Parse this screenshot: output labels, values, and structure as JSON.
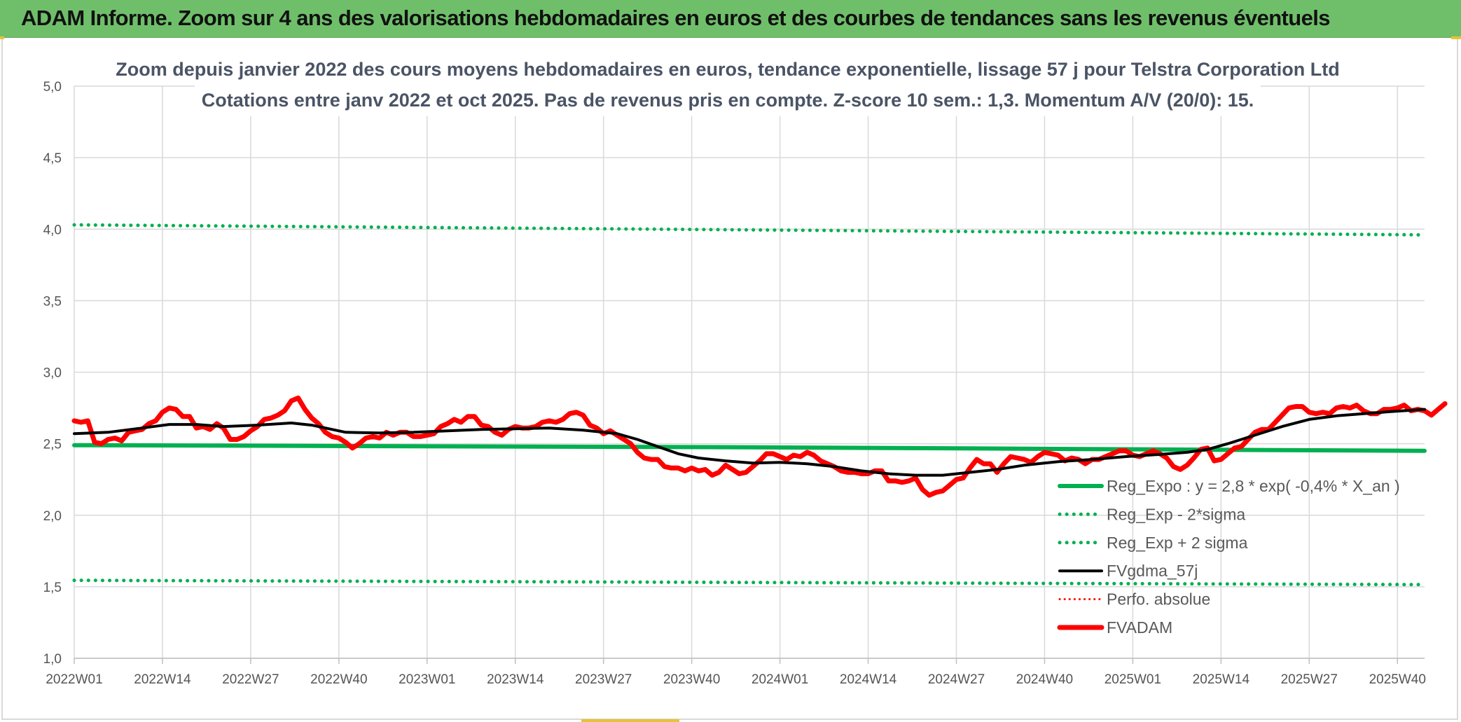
{
  "banner": {
    "title": "ADAM Informe. Zoom sur 4 ans des valorisations hebdomadaires en euros et des courbes de tendances sans les revenus éventuels"
  },
  "colors": {
    "banner_bg": "#6fbf6a",
    "reg_expo": "#00b050",
    "band": "#00b050",
    "fvgdma": "#000000",
    "perfo": "#ff0000",
    "fvadam": "#ff0000",
    "grid": "#d9d9d9"
  },
  "chart_data": {
    "type": "line",
    "title_line1": "Zoom depuis janvier 2022 des cours moyens hebdomadaires en euros, tendance exponentielle, lissage 57 j pour Telstra Corporation Ltd",
    "title_line2": "Cotations entre janv 2022 et oct 2025. Pas de revenus pris en compte. Z-score 10 sem.: 1,3. Momentum A/V (20/0): 15.",
    "xlabel": "",
    "ylabel": "",
    "ylim": [
      1.0,
      5.0
    ],
    "yticks": [
      "1,0",
      "1,5",
      "2,0",
      "2,5",
      "3,0",
      "3,5",
      "4,0",
      "4,5",
      "5,0"
    ],
    "xticks": [
      "2022W01",
      "2022W14",
      "2022W27",
      "2022W40",
      "2023W01",
      "2023W14",
      "2023W27",
      "2023W40",
      "2024W01",
      "2024W14",
      "2024W27",
      "2024W40",
      "2025W01",
      "2025W14",
      "2025W27",
      "2025W40"
    ],
    "x_range": [
      0,
      199
    ],
    "xtick_positions": [
      0,
      13,
      26,
      39,
      52,
      65,
      78,
      91,
      104,
      117,
      130,
      143,
      156,
      169,
      182,
      195
    ],
    "legend_position": "bottom-right",
    "series": [
      {
        "name": "Reg_Expo : y = 2,8 * exp( -0,4% *  X_an )",
        "style": "solid-thick",
        "keypoints": [
          [
            0,
            2.49
          ],
          [
            100,
            2.475
          ],
          [
            199,
            2.45
          ]
        ]
      },
      {
        "name": "Reg_Exp - 2*sigma",
        "style": "dotted",
        "keypoints": [
          [
            0,
            1.545
          ],
          [
            199,
            1.515
          ]
        ]
      },
      {
        "name": "Reg_Exp + 2 sigma",
        "style": "dotted",
        "keypoints": [
          [
            0,
            4.03
          ],
          [
            199,
            3.96
          ]
        ]
      },
      {
        "name": "FVgdma_57j",
        "style": "solid",
        "keypoints": [
          [
            0,
            2.57
          ],
          [
            5,
            2.58
          ],
          [
            10,
            2.61
          ],
          [
            14,
            2.635
          ],
          [
            18,
            2.635
          ],
          [
            22,
            2.62
          ],
          [
            27,
            2.63
          ],
          [
            32,
            2.645
          ],
          [
            35,
            2.63
          ],
          [
            40,
            2.58
          ],
          [
            45,
            2.575
          ],
          [
            50,
            2.58
          ],
          [
            55,
            2.59
          ],
          [
            60,
            2.6
          ],
          [
            65,
            2.605
          ],
          [
            70,
            2.61
          ],
          [
            75,
            2.595
          ],
          [
            80,
            2.57
          ],
          [
            83,
            2.53
          ],
          [
            86,
            2.48
          ],
          [
            89,
            2.43
          ],
          [
            92,
            2.4
          ],
          [
            96,
            2.38
          ],
          [
            100,
            2.365
          ],
          [
            104,
            2.37
          ],
          [
            108,
            2.36
          ],
          [
            112,
            2.34
          ],
          [
            116,
            2.31
          ],
          [
            120,
            2.29
          ],
          [
            124,
            2.28
          ],
          [
            128,
            2.28
          ],
          [
            132,
            2.3
          ],
          [
            136,
            2.32
          ],
          [
            140,
            2.35
          ],
          [
            145,
            2.375
          ],
          [
            150,
            2.39
          ],
          [
            155,
            2.41
          ],
          [
            160,
            2.425
          ],
          [
            164,
            2.44
          ],
          [
            167,
            2.46
          ],
          [
            170,
            2.5
          ],
          [
            174,
            2.56
          ],
          [
            178,
            2.62
          ],
          [
            182,
            2.67
          ],
          [
            186,
            2.695
          ],
          [
            190,
            2.71
          ],
          [
            194,
            2.725
          ],
          [
            199,
            2.74
          ]
        ]
      },
      {
        "name": "Perfo. absolue",
        "style": "dotted",
        "keypoints": []
      },
      {
        "name": "FVADAM",
        "style": "solid-thick",
        "keypoints": [
          [
            0,
            2.66
          ],
          [
            1,
            2.65
          ],
          [
            2,
            2.66
          ],
          [
            3,
            2.51
          ],
          [
            4,
            2.5
          ],
          [
            5,
            2.53
          ],
          [
            6,
            2.54
          ],
          [
            7,
            2.52
          ],
          [
            8,
            2.58
          ],
          [
            9,
            2.59
          ],
          [
            10,
            2.6
          ],
          [
            11,
            2.64
          ],
          [
            12,
            2.66
          ],
          [
            13,
            2.72
          ],
          [
            14,
            2.75
          ],
          [
            15,
            2.74
          ],
          [
            16,
            2.69
          ],
          [
            17,
            2.69
          ],
          [
            18,
            2.61
          ],
          [
            19,
            2.62
          ],
          [
            20,
            2.6
          ],
          [
            21,
            2.64
          ],
          [
            22,
            2.61
          ],
          [
            23,
            2.53
          ],
          [
            24,
            2.53
          ],
          [
            25,
            2.55
          ],
          [
            26,
            2.59
          ],
          [
            27,
            2.62
          ],
          [
            28,
            2.67
          ],
          [
            29,
            2.68
          ],
          [
            30,
            2.7
          ],
          [
            31,
            2.73
          ],
          [
            32,
            2.8
          ],
          [
            33,
            2.82
          ],
          [
            34,
            2.74
          ],
          [
            35,
            2.68
          ],
          [
            36,
            2.64
          ],
          [
            37,
            2.58
          ],
          [
            38,
            2.55
          ],
          [
            39,
            2.54
          ],
          [
            40,
            2.51
          ],
          [
            41,
            2.47
          ],
          [
            42,
            2.5
          ],
          [
            43,
            2.54
          ],
          [
            44,
            2.55
          ],
          [
            45,
            2.54
          ],
          [
            46,
            2.58
          ],
          [
            47,
            2.56
          ],
          [
            48,
            2.58
          ],
          [
            49,
            2.58
          ],
          [
            50,
            2.55
          ],
          [
            51,
            2.55
          ],
          [
            52,
            2.56
          ],
          [
            53,
            2.57
          ],
          [
            54,
            2.62
          ],
          [
            55,
            2.64
          ],
          [
            56,
            2.67
          ],
          [
            57,
            2.65
          ],
          [
            58,
            2.69
          ],
          [
            59,
            2.69
          ],
          [
            60,
            2.63
          ],
          [
            61,
            2.62
          ],
          [
            62,
            2.58
          ],
          [
            63,
            2.56
          ],
          [
            64,
            2.6
          ],
          [
            65,
            2.62
          ],
          [
            66,
            2.61
          ],
          [
            67,
            2.61
          ],
          [
            68,
            2.62
          ],
          [
            69,
            2.65
          ],
          [
            70,
            2.66
          ],
          [
            71,
            2.65
          ],
          [
            72,
            2.67
          ],
          [
            73,
            2.71
          ],
          [
            74,
            2.72
          ],
          [
            75,
            2.7
          ],
          [
            76,
            2.63
          ],
          [
            77,
            2.61
          ],
          [
            78,
            2.57
          ],
          [
            79,
            2.59
          ],
          [
            80,
            2.56
          ],
          [
            81,
            2.53
          ],
          [
            82,
            2.5
          ],
          [
            83,
            2.44
          ],
          [
            84,
            2.4
          ],
          [
            85,
            2.39
          ],
          [
            86,
            2.39
          ],
          [
            87,
            2.34
          ],
          [
            88,
            2.33
          ],
          [
            89,
            2.33
          ],
          [
            90,
            2.31
          ],
          [
            91,
            2.33
          ],
          [
            92,
            2.31
          ],
          [
            93,
            2.32
          ],
          [
            94,
            2.28
          ],
          [
            95,
            2.3
          ],
          [
            96,
            2.35
          ],
          [
            97,
            2.32
          ],
          [
            98,
            2.29
          ],
          [
            99,
            2.3
          ],
          [
            100,
            2.34
          ],
          [
            101,
            2.38
          ],
          [
            102,
            2.43
          ],
          [
            103,
            2.43
          ],
          [
            104,
            2.41
          ],
          [
            105,
            2.39
          ],
          [
            106,
            2.42
          ],
          [
            107,
            2.41
          ],
          [
            108,
            2.44
          ],
          [
            109,
            2.42
          ],
          [
            110,
            2.38
          ],
          [
            111,
            2.36
          ],
          [
            112,
            2.34
          ],
          [
            113,
            2.31
          ],
          [
            114,
            2.3
          ],
          [
            115,
            2.3
          ],
          [
            116,
            2.29
          ],
          [
            117,
            2.29
          ],
          [
            118,
            2.31
          ],
          [
            119,
            2.31
          ],
          [
            120,
            2.24
          ],
          [
            121,
            2.24
          ],
          [
            122,
            2.23
          ],
          [
            123,
            2.24
          ],
          [
            124,
            2.26
          ],
          [
            125,
            2.18
          ],
          [
            126,
            2.14
          ],
          [
            127,
            2.16
          ],
          [
            128,
            2.17
          ],
          [
            129,
            2.21
          ],
          [
            130,
            2.25
          ],
          [
            131,
            2.26
          ],
          [
            132,
            2.33
          ],
          [
            133,
            2.39
          ],
          [
            134,
            2.36
          ],
          [
            135,
            2.36
          ],
          [
            136,
            2.3
          ],
          [
            137,
            2.36
          ],
          [
            138,
            2.41
          ],
          [
            139,
            2.4
          ],
          [
            140,
            2.39
          ],
          [
            141,
            2.37
          ],
          [
            142,
            2.41
          ],
          [
            143,
            2.44
          ],
          [
            144,
            2.43
          ],
          [
            145,
            2.42
          ],
          [
            146,
            2.38
          ],
          [
            147,
            2.4
          ],
          [
            148,
            2.39
          ],
          [
            149,
            2.36
          ],
          [
            150,
            2.39
          ],
          [
            151,
            2.39
          ],
          [
            152,
            2.41
          ],
          [
            153,
            2.43
          ],
          [
            154,
            2.45
          ],
          [
            155,
            2.45
          ],
          [
            156,
            2.42
          ],
          [
            157,
            2.41
          ],
          [
            158,
            2.43
          ],
          [
            159,
            2.45
          ],
          [
            160,
            2.43
          ],
          [
            161,
            2.4
          ],
          [
            162,
            2.34
          ],
          [
            163,
            2.32
          ],
          [
            164,
            2.35
          ],
          [
            165,
            2.4
          ],
          [
            166,
            2.46
          ],
          [
            167,
            2.47
          ],
          [
            168,
            2.38
          ],
          [
            169,
            2.39
          ],
          [
            170,
            2.43
          ],
          [
            171,
            2.47
          ],
          [
            172,
            2.48
          ],
          [
            173,
            2.53
          ],
          [
            174,
            2.58
          ],
          [
            175,
            2.6
          ],
          [
            176,
            2.6
          ],
          [
            177,
            2.65
          ],
          [
            178,
            2.7
          ],
          [
            179,
            2.75
          ],
          [
            180,
            2.76
          ],
          [
            181,
            2.76
          ],
          [
            182,
            2.72
          ],
          [
            183,
            2.71
          ],
          [
            184,
            2.72
          ],
          [
            185,
            2.71
          ],
          [
            186,
            2.75
          ],
          [
            187,
            2.76
          ],
          [
            188,
            2.75
          ],
          [
            189,
            2.77
          ],
          [
            190,
            2.73
          ],
          [
            191,
            2.71
          ],
          [
            192,
            2.71
          ],
          [
            193,
            2.74
          ],
          [
            194,
            2.74
          ],
          [
            195,
            2.75
          ],
          [
            196,
            2.77
          ],
          [
            197,
            2.73
          ],
          [
            198,
            2.74
          ],
          [
            199,
            2.73
          ],
          [
            200,
            2.7
          ],
          [
            201,
            2.74
          ],
          [
            202,
            2.78
          ]
        ]
      }
    ]
  }
}
